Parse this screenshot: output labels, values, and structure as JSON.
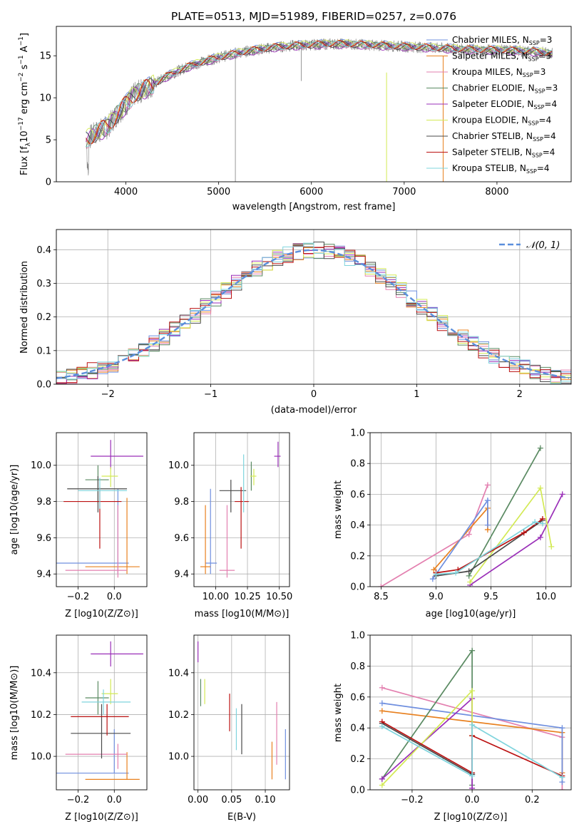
{
  "colors": {
    "Chabrier MILES": "#6f8fdf",
    "Salpeter MILES": "#e8801f",
    "Kroupa MILES": "#e37faf",
    "Chabrier ELODIE": "#5a8a62",
    "Salpeter ELODIE": "#9a2fb8",
    "Kroupa ELODIE": "#d3ea55",
    "Chabrier STELIB": "#4a4a4a",
    "Salpeter STELIB": "#bb1111",
    "Kroupa STELIB": "#7fd4dd",
    "data": "#808080",
    "normal": "#5b8fdc"
  },
  "legend_spectrum": [
    {
      "model": "Chabrier MILES",
      "n": "3"
    },
    {
      "model": "Salpeter MILES",
      "n": "3"
    },
    {
      "model": "Kroupa MILES",
      "n": "3"
    },
    {
      "model": "Chabrier ELODIE",
      "n": "3"
    },
    {
      "model": "Salpeter ELODIE",
      "n": "4"
    },
    {
      "model": "Kroupa ELODIE",
      "n": "4"
    },
    {
      "model": "Chabrier STELIB",
      "n": "4"
    },
    {
      "model": "Salpeter STELIB",
      "n": "4"
    },
    {
      "model": "Kroupa STELIB",
      "n": "4"
    }
  ],
  "chart_data": [
    {
      "panel": "spectrum",
      "type": "line",
      "title": "PLATE=0513, MJD=51989, FIBERID=0257, z=0.076",
      "xlabel": "wavelength [Angstrom, rest frame]",
      "ylabel": "Flux [f_λ 10^-17 erg cm^-2 s^-1 A^-1]",
      "xlim": [
        3250,
        8800
      ],
      "ylim": [
        0,
        18.5
      ],
      "xticks": [
        "4000",
        "5000",
        "6000",
        "7000",
        "8000"
      ],
      "yticks": [
        "0",
        "5",
        "10",
        "15"
      ],
      "continuum": {
        "x": [
          3570,
          3700,
          3800,
          3900,
          4000,
          4100,
          4200,
          4300,
          4400,
          4600,
          4800,
          5000,
          5200,
          5400,
          5600,
          5800,
          6000,
          6200,
          6400,
          6600,
          6800,
          7000,
          7200,
          7400,
          7600,
          7800,
          8000,
          8200,
          8400,
          8600
        ],
        "y": [
          5.0,
          6.0,
          6.5,
          8.0,
          9.2,
          10.5,
          11.0,
          11.6,
          12.3,
          13.4,
          14.2,
          14.8,
          15.3,
          15.7,
          16.0,
          16.2,
          16.3,
          16.4,
          16.4,
          16.3,
          16.2,
          16.1,
          16.0,
          15.9,
          15.8,
          15.7,
          15.7,
          15.6,
          15.5,
          15.3
        ]
      },
      "grid": false,
      "legend_position": "right"
    },
    {
      "panel": "residual-histogram",
      "type": "line",
      "xlabel": "(data-model)/error",
      "ylabel": "Normed distribution",
      "xlim": [
        -2.5,
        2.5
      ],
      "ylim": [
        0,
        0.46
      ],
      "xticks": [
        "−2",
        "−1",
        "0",
        "1",
        "2"
      ],
      "yticks": [
        "0.0",
        "0.1",
        "0.2",
        "0.3",
        "0.4"
      ],
      "bin_width": 0.1,
      "legend": "𝒩(0, 1)",
      "grid": true
    },
    {
      "panel": "age-vs-Z",
      "type": "scatter",
      "xlabel": "Z [log10(Z/Z⊙)]",
      "ylabel": "age [log10(age/yr)]",
      "xlim": [
        -0.32,
        0.18
      ],
      "ylim": [
        9.33,
        10.18
      ],
      "xticks": [
        "−0.2",
        "0.0"
      ],
      "yticks": [
        "9.4",
        "9.6",
        "9.8",
        "10.0"
      ],
      "points": [
        {
          "model": "Chabrier MILES",
          "x": 0.02,
          "xerr": [
            0.34,
            0.06
          ],
          "y": 9.46,
          "yerr": [
            0.06,
            0.41
          ]
        },
        {
          "model": "Salpeter MILES",
          "x": 0.07,
          "xerr": [
            0.23,
            0.07
          ],
          "y": 9.44,
          "yerr": [
            0.04,
            0.38
          ]
        },
        {
          "model": "Kroupa MILES",
          "x": 0.02,
          "xerr": [
            0.29,
            0.05
          ],
          "y": 9.42,
          "yerr": [
            0.04,
            0.36
          ]
        },
        {
          "model": "Chabrier ELODIE",
          "x": -0.09,
          "xerr": [
            0.07,
            0.06
          ],
          "y": 9.92,
          "yerr": [
            0.13,
            0.08
          ]
        },
        {
          "model": "Salpeter ELODIE",
          "x": -0.02,
          "xerr": [
            0.11,
            0.18
          ],
          "y": 10.05,
          "yerr": [
            0.07,
            0.09
          ]
        },
        {
          "model": "Kroupa ELODIE",
          "x": -0.02,
          "xerr": [
            0.05,
            0.04
          ],
          "y": 9.94,
          "yerr": [
            0.06,
            0.05
          ]
        },
        {
          "model": "Chabrier STELIB",
          "x": -0.09,
          "xerr": [
            0.17,
            0.16
          ],
          "y": 9.87,
          "yerr": [
            0.13,
            0.07
          ]
        },
        {
          "model": "Salpeter STELIB",
          "x": -0.08,
          "xerr": [
            0.2,
            0.12
          ],
          "y": 9.8,
          "yerr": [
            0.26,
            0.08
          ]
        },
        {
          "model": "Kroupa STELIB",
          "x": -0.08,
          "xerr": [
            0.12,
            0.15
          ],
          "y": 9.86,
          "yerr": [
            0.1,
            0.07
          ]
        }
      ],
      "grid": true
    },
    {
      "panel": "age-vs-mass",
      "type": "scatter",
      "xlabel": "mass [log10(M/M⊙)]",
      "ylabel": "",
      "xlim": [
        9.83,
        10.58
      ],
      "ylim": [
        9.33,
        10.18
      ],
      "xticks": [
        "10.00",
        "10.25",
        "10.50"
      ],
      "yticks": [
        "9.4",
        "9.6",
        "9.8",
        "10.0"
      ],
      "points": [
        {
          "model": "Chabrier MILES",
          "x": 9.96,
          "xerr": [
            0.04,
            0.05
          ],
          "y": 9.46,
          "yerr": [
            0.06,
            0.41
          ]
        },
        {
          "model": "Salpeter MILES",
          "x": 9.92,
          "xerr": [
            0.04,
            0.04
          ],
          "y": 9.44,
          "yerr": [
            0.04,
            0.34
          ]
        },
        {
          "model": "Kroupa MILES",
          "x": 10.09,
          "xerr": [
            0.06,
            0.06
          ],
          "y": 9.42,
          "yerr": [
            0.04,
            0.36
          ]
        },
        {
          "model": "Chabrier ELODIE",
          "x": 10.28,
          "xerr": [
            0.0,
            0.0
          ],
          "y": 9.92,
          "yerr": [
            0.06,
            0.1
          ]
        },
        {
          "model": "Salpeter ELODIE",
          "x": 10.49,
          "xerr": [
            0.03,
            0.02
          ],
          "y": 10.05,
          "yerr": [
            0.06,
            0.08
          ]
        },
        {
          "model": "Kroupa ELODIE",
          "x": 10.3,
          "xerr": [
            0.03,
            0.02
          ],
          "y": 9.94,
          "yerr": [
            0.05,
            0.04
          ]
        },
        {
          "model": "Chabrier STELIB",
          "x": 10.12,
          "xerr": [
            0.09,
            0.12
          ],
          "y": 9.86,
          "yerr": [
            0.12,
            0.06
          ]
        },
        {
          "model": "Salpeter STELIB",
          "x": 10.2,
          "xerr": [
            0.05,
            0.06
          ],
          "y": 9.8,
          "yerr": [
            0.26,
            0.08
          ]
        },
        {
          "model": "Kroupa STELIB",
          "x": 10.22,
          "xerr": [
            0.0,
            0.0
          ],
          "y": 9.86,
          "yerr": [
            0.12,
            0.2
          ]
        }
      ],
      "grid": true
    },
    {
      "panel": "mass-weight-vs-age",
      "type": "line",
      "xlabel": "age [log10(age/yr)]",
      "ylabel": "mass weight",
      "xlim": [
        8.4,
        10.23
      ],
      "ylim": [
        0.0,
        1.0
      ],
      "xticks": [
        "8.5",
        "9.0",
        "9.5",
        "10.0"
      ],
      "yticks": [
        "0.0",
        "0.2",
        "0.4",
        "0.6",
        "0.8",
        "1.0"
      ],
      "series": [
        {
          "model": "Kroupa MILES",
          "x": [
            8.5,
            9.3,
            9.47
          ],
          "y": [
            0.0,
            0.34,
            0.66
          ]
        },
        {
          "model": "Salpeter MILES",
          "x": [
            8.98,
            9.47,
            9.47
          ],
          "y": [
            0.11,
            0.51,
            0.37
          ]
        },
        {
          "model": "Chabrier MILES",
          "x": [
            8.97,
            9.47,
            9.47
          ],
          "y": [
            0.05,
            0.56,
            0.4
          ]
        },
        {
          "model": "Chabrier ELODIE",
          "x": [
            9.3,
            9.95
          ],
          "y": [
            0.07,
            0.9
          ]
        },
        {
          "model": "Salpeter ELODIE",
          "x": [
            9.31,
            9.95,
            10.15
          ],
          "y": [
            0.01,
            0.32,
            0.6
          ]
        },
        {
          "model": "Kroupa ELODIE",
          "x": [
            9.31,
            9.95,
            10.05
          ],
          "y": [
            0.03,
            0.64,
            0.26
          ]
        },
        {
          "model": "Chabrier STELIB",
          "x": [
            9.0,
            9.3,
            9.97
          ],
          "y": [
            0.07,
            0.1,
            0.43
          ]
        },
        {
          "model": "Salpeter STELIB",
          "x": [
            9.0,
            9.2,
            9.8,
            9.97
          ],
          "y": [
            0.09,
            0.11,
            0.35,
            0.44
          ]
        },
        {
          "model": "Kroupa STELIB",
          "x": [
            9.0,
            9.18,
            9.9,
            9.97
          ],
          "y": [
            0.08,
            0.09,
            0.42,
            0.41
          ]
        }
      ],
      "grid": true
    },
    {
      "panel": "mass-vs-Z",
      "type": "scatter",
      "xlabel": "Z [log10(Z/Z⊙)]",
      "ylabel": "mass [log10(M/M⊙)]",
      "xlim": [
        -0.32,
        0.18
      ],
      "ylim": [
        9.84,
        10.58
      ],
      "xticks": [
        "−0.2",
        "0.0"
      ],
      "yticks": [
        "10.0",
        "10.2",
        "10.4"
      ],
      "points": [
        {
          "model": "Chabrier MILES",
          "x": 0.0,
          "xerr": [
            0.32,
            0.08
          ],
          "y": 9.92,
          "yerr": [
            0.0,
            0.21
          ]
        },
        {
          "model": "Salpeter MILES",
          "x": 0.07,
          "xerr": [
            0.23,
            0.07
          ],
          "y": 9.89,
          "yerr": [
            0.0,
            0.13
          ]
        },
        {
          "model": "Kroupa MILES",
          "x": 0.02,
          "xerr": [
            0.29,
            0.05
          ],
          "y": 10.01,
          "yerr": [
            0.07,
            0.05
          ]
        },
        {
          "model": "Chabrier ELODIE",
          "x": -0.09,
          "xerr": [
            0.07,
            0.06
          ],
          "y": 10.28,
          "yerr": [
            0.08,
            0.08
          ]
        },
        {
          "model": "Salpeter ELODIE",
          "x": -0.02,
          "xerr": [
            0.11,
            0.18
          ],
          "y": 10.49,
          "yerr": [
            0.06,
            0.06
          ]
        },
        {
          "model": "Kroupa ELODIE",
          "x": -0.02,
          "xerr": [
            0.05,
            0.04
          ],
          "y": 10.3,
          "yerr": [
            0.05,
            0.07
          ]
        },
        {
          "model": "Chabrier STELIB",
          "x": -0.07,
          "xerr": [
            0.17,
            0.16
          ],
          "y": 10.11,
          "yerr": [
            0.12,
            0.14
          ]
        },
        {
          "model": "Salpeter STELIB",
          "x": -0.04,
          "xerr": [
            0.2,
            0.12
          ],
          "y": 10.19,
          "yerr": [
            0.09,
            0.06
          ]
        },
        {
          "model": "Kroupa STELIB",
          "x": -0.06,
          "xerr": [
            0.12,
            0.15
          ],
          "y": 10.26,
          "yerr": [
            0.06,
            0.06
          ]
        }
      ],
      "grid": true
    },
    {
      "panel": "mass-vs-ebv",
      "type": "scatter",
      "xlabel": "E(B-V)",
      "ylabel": "",
      "xlim": [
        -0.006,
        0.136
      ],
      "ylim": [
        9.84,
        10.58
      ],
      "xticks": [
        "0.00",
        "0.05",
        "0.10"
      ],
      "yticks": [
        "10.0",
        "10.2",
        "10.4"
      ],
      "points": [
        {
          "model": "Chabrier MILES",
          "x": 0.13,
          "xerr": [
            0,
            0
          ],
          "y": 10.01,
          "yerr": [
            0.12,
            0.12
          ]
        },
        {
          "model": "Salpeter MILES",
          "x": 0.11,
          "xerr": [
            0,
            0
          ],
          "y": 9.97,
          "yerr": [
            0.08,
            0.1
          ]
        },
        {
          "model": "Kroupa MILES",
          "x": 0.117,
          "xerr": [
            0,
            0
          ],
          "y": 10.1,
          "yerr": [
            0.14,
            0.16
          ]
        },
        {
          "model": "Chabrier ELODIE",
          "x": 0.004,
          "xerr": [
            0,
            0
          ],
          "y": 10.3,
          "yerr": [
            0.06,
            0.07
          ]
        },
        {
          "model": "Salpeter ELODIE",
          "x": 0.0,
          "xerr": [
            0,
            0
          ],
          "y": 10.49,
          "yerr": [
            0.04,
            0.06
          ]
        },
        {
          "model": "Kroupa ELODIE",
          "x": 0.01,
          "xerr": [
            0,
            0
          ],
          "y": 10.31,
          "yerr": [
            0.06,
            0.06
          ]
        },
        {
          "model": "Chabrier STELIB",
          "x": 0.065,
          "xerr": [
            0,
            0
          ],
          "y": 10.13,
          "yerr": [
            0.12,
            0.12
          ]
        },
        {
          "model": "Salpeter STELIB",
          "x": 0.047,
          "xerr": [
            0,
            0
          ],
          "y": 10.2,
          "yerr": [
            0.08,
            0.1
          ]
        },
        {
          "model": "Kroupa STELIB",
          "x": 0.057,
          "xerr": [
            0,
            0
          ],
          "y": 10.13,
          "yerr": [
            0.1,
            0.1
          ]
        }
      ],
      "grid": true
    },
    {
      "panel": "mass-weight-vs-Z",
      "type": "line",
      "xlabel": "Z [log10(Z/Z⊙)]",
      "ylabel": "mass weight",
      "xlim": [
        -0.34,
        0.33
      ],
      "ylim": [
        0.0,
        1.0
      ],
      "xticks": [
        "−0.2",
        "0.0",
        "0.2"
      ],
      "yticks": [
        "0.0",
        "0.2",
        "0.4",
        "0.6",
        "0.8",
        "1.0"
      ],
      "series": [
        {
          "model": "Kroupa MILES",
          "x": [
            -0.3,
            0.3,
            0.3
          ],
          "y": [
            0.66,
            0.34,
            0.0
          ]
        },
        {
          "model": "Salpeter MILES",
          "x": [
            -0.3,
            0.3,
            0.3
          ],
          "y": [
            0.51,
            0.37,
            0.11
          ]
        },
        {
          "model": "Chabrier MILES",
          "x": [
            -0.3,
            0.3,
            0.3
          ],
          "y": [
            0.56,
            0.4,
            0.05
          ]
        },
        {
          "model": "Chabrier ELODIE",
          "x": [
            -0.3,
            0.0,
            0.0
          ],
          "y": [
            0.07,
            0.9,
            0.03
          ]
        },
        {
          "model": "Salpeter ELODIE",
          "x": [
            -0.3,
            0.0,
            0.0
          ],
          "y": [
            0.07,
            0.59,
            0.01
          ]
        },
        {
          "model": "Kroupa ELODIE",
          "x": [
            -0.3,
            0.0,
            0.0
          ],
          "y": [
            0.03,
            0.64,
            0.35
          ]
        },
        {
          "model": "Chabrier STELIB",
          "x": [
            -0.3,
            0.0,
            0.0
          ],
          "y": [
            0.43,
            0.1,
            0.1
          ]
        },
        {
          "model": "Salpeter STELIB",
          "x": [
            -0.3,
            0.0,
            0.0,
            0.3
          ],
          "y": [
            0.44,
            0.11,
            0.35,
            0.09
          ]
        },
        {
          "model": "Kroupa STELIB",
          "x": [
            -0.3,
            0.0,
            0.0,
            0.3
          ],
          "y": [
            0.41,
            0.09,
            0.42,
            0.08
          ]
        }
      ],
      "grid": true
    }
  ]
}
